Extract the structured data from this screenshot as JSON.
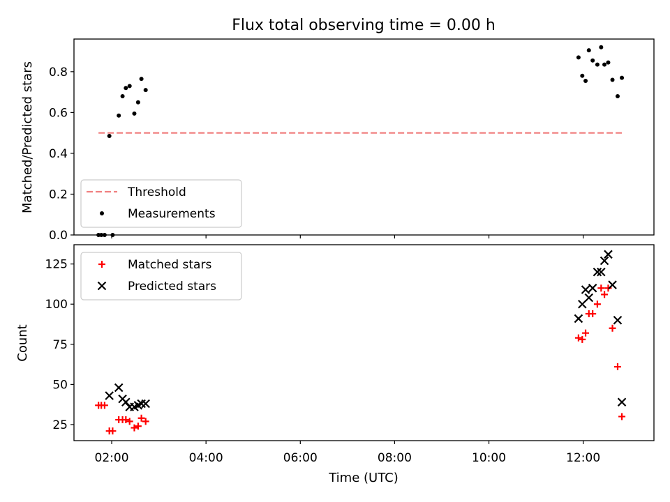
{
  "chart_data": {
    "title": "Flux total observing time = 0.00 h",
    "xlabel": "Time (UTC)",
    "x_unit": "hours UTC",
    "xlim": [
      1.2,
      13.5
    ],
    "xticks": [
      {
        "value": 2,
        "label": "02:00"
      },
      {
        "value": 4,
        "label": "04:00"
      },
      {
        "value": 6,
        "label": "06:00"
      },
      {
        "value": 8,
        "label": "08:00"
      },
      {
        "value": 10,
        "label": "10:00"
      },
      {
        "value": 12,
        "label": "12:00"
      }
    ],
    "panels": [
      {
        "type": "scatter",
        "ylabel": "Matched/Predicted stars",
        "ylim": [
          0,
          0.96
        ],
        "yticks": [
          {
            "value": 0,
            "label": "0.0"
          },
          {
            "value": 0.2,
            "label": "0.2"
          },
          {
            "value": 0.4,
            "label": "0.4"
          },
          {
            "value": 0.6,
            "label": "0.6"
          },
          {
            "value": 0.8,
            "label": "0.8"
          }
        ],
        "legend": {
          "position": "lower-left",
          "entries": [
            "Threshold",
            "Measurements"
          ]
        },
        "series": [
          {
            "name": "Threshold",
            "style": "dashed-line",
            "color": "#f08080",
            "x": [
              1.72,
              12.82
            ],
            "y": [
              0.5,
              0.5
            ]
          },
          {
            "name": "Measurements",
            "style": "dot",
            "color": "#000000",
            "x": [
              1.72,
              1.78,
              1.85,
              1.95,
              2.02,
              2.15,
              2.23,
              2.3,
              2.38,
              2.48,
              2.56,
              2.63,
              2.72,
              11.9,
              11.98,
              12.05,
              12.12,
              12.2,
              12.3,
              12.38,
              12.45,
              12.53,
              12.62,
              12.73,
              12.82
            ],
            "y": [
              0.0,
              0.0,
              0.0,
              0.485,
              0.0,
              0.585,
              0.68,
              0.72,
              0.73,
              0.595,
              0.65,
              0.765,
              0.71,
              0.87,
              0.78,
              0.755,
              0.905,
              0.855,
              0.835,
              0.92,
              0.835,
              0.845,
              0.76,
              0.68,
              0.77
            ]
          }
        ]
      },
      {
        "type": "scatter",
        "ylabel": "Count",
        "ylim": [
          15,
          137
        ],
        "yticks": [
          {
            "value": 25,
            "label": "25"
          },
          {
            "value": 50,
            "label": "50"
          },
          {
            "value": 75,
            "label": "75"
          },
          {
            "value": 100,
            "label": "100"
          },
          {
            "value": 125,
            "label": "125"
          }
        ],
        "legend": {
          "position": "top-left",
          "entries": [
            "Matched stars",
            "Predicted stars"
          ]
        },
        "series": [
          {
            "name": "Matched stars",
            "marker": "plus",
            "color": "#ff0000",
            "x": [
              1.72,
              1.78,
              1.85,
              1.95,
              2.02,
              2.15,
              2.23,
              2.3,
              2.38,
              2.48,
              2.56,
              2.63,
              2.72,
              11.9,
              11.98,
              12.05,
              12.12,
              12.2,
              12.3,
              12.38,
              12.45,
              12.53,
              12.62,
              12.73,
              12.82
            ],
            "y": [
              37,
              37,
              37,
              21,
              21,
              28,
              28,
              28,
              27,
              23,
              24,
              29,
              27,
              79,
              78,
              82,
              94,
              94,
              100,
              110,
              106,
              110,
              85,
              61,
              30
            ]
          },
          {
            "name": "Predicted stars",
            "marker": "x",
            "color": "#000000",
            "x": [
              1.95,
              2.15,
              2.23,
              2.3,
              2.38,
              2.48,
              2.56,
              2.63,
              2.72,
              11.9,
              11.98,
              12.05,
              12.12,
              12.2,
              12.3,
              12.38,
              12.45,
              12.53,
              12.62,
              12.73,
              12.82
            ],
            "y": [
              43,
              48,
              41,
              39,
              36,
              36,
              37,
              38,
              38,
              91,
              100,
              109,
              104,
              110,
              120,
              120,
              127,
              131,
              112,
              90,
              39
            ]
          }
        ]
      }
    ]
  }
}
